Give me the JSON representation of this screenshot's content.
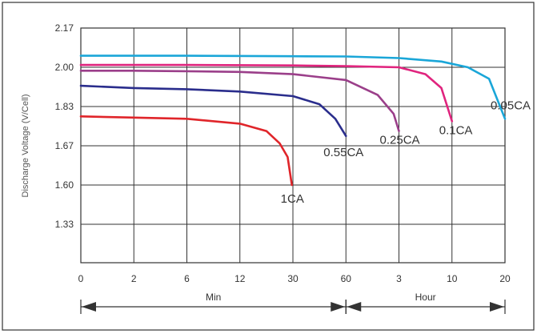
{
  "chart_data": {
    "type": "line",
    "ylabel": "Discharge Voltage (V/Cell)",
    "yticks": [
      "2.17",
      "2.00",
      "1.83",
      "1.67",
      "1.60",
      "1.33"
    ],
    "xticks": [
      "0",
      "2",
      "6",
      "12",
      "30",
      "60",
      "3",
      "10",
      "20"
    ],
    "segments": [
      {
        "label": "Min",
        "from": "0",
        "to": "60"
      },
      {
        "label": "Hour",
        "from": "60",
        "to": "20"
      }
    ],
    "grid": true,
    "series": [
      {
        "name": "1CA",
        "color": "#e0252a",
        "points": [
          [
            0,
            1.79
          ],
          [
            1,
            1.785
          ],
          [
            2,
            1.78
          ],
          [
            3,
            1.76
          ],
          [
            3.5,
            1.73
          ],
          [
            3.75,
            1.68
          ],
          [
            3.9,
            1.65
          ],
          [
            3.98,
            1.6
          ]
        ]
      },
      {
        "name": "0.55CA",
        "color": "#2a2d8c",
        "points": [
          [
            0,
            1.92
          ],
          [
            1,
            1.91
          ],
          [
            2,
            1.905
          ],
          [
            3,
            1.895
          ],
          [
            4,
            1.875
          ],
          [
            4.5,
            1.84
          ],
          [
            4.8,
            1.78
          ],
          [
            5,
            1.71
          ]
        ]
      },
      {
        "name": "0.25CA",
        "color": "#9b3f8a",
        "points": [
          [
            0,
            1.985
          ],
          [
            1,
            1.985
          ],
          [
            2,
            1.983
          ],
          [
            3,
            1.98
          ],
          [
            4,
            1.97
          ],
          [
            5,
            1.945
          ],
          [
            5.6,
            1.88
          ],
          [
            5.9,
            1.8
          ],
          [
            6,
            1.73
          ]
        ]
      },
      {
        "name": "0.1CA",
        "color": "#e0247e",
        "points": [
          [
            0,
            2.01
          ],
          [
            2,
            2.01
          ],
          [
            4,
            2.008
          ],
          [
            5,
            2.005
          ],
          [
            6,
            2.0
          ],
          [
            6.5,
            1.97
          ],
          [
            6.8,
            1.91
          ],
          [
            7,
            1.77
          ]
        ]
      },
      {
        "name": "0.05CA",
        "color": "#1aa6d8",
        "points": [
          [
            0,
            2.05
          ],
          [
            2,
            2.05
          ],
          [
            4,
            2.048
          ],
          [
            5,
            2.047
          ],
          [
            6,
            2.04
          ],
          [
            6.8,
            2.025
          ],
          [
            7.3,
            2.0
          ],
          [
            7.7,
            1.95
          ],
          [
            8,
            1.78
          ]
        ]
      }
    ],
    "annotations": [
      {
        "text": "1CA",
        "series": "1CA"
      },
      {
        "text": "0.55CA",
        "series": "0.55CA"
      },
      {
        "text": "0.25CA",
        "series": "0.25CA"
      },
      {
        "text": "0.1CA",
        "series": "0.1CA"
      },
      {
        "text": "0.05CA",
        "series": "0.05CA"
      }
    ]
  }
}
